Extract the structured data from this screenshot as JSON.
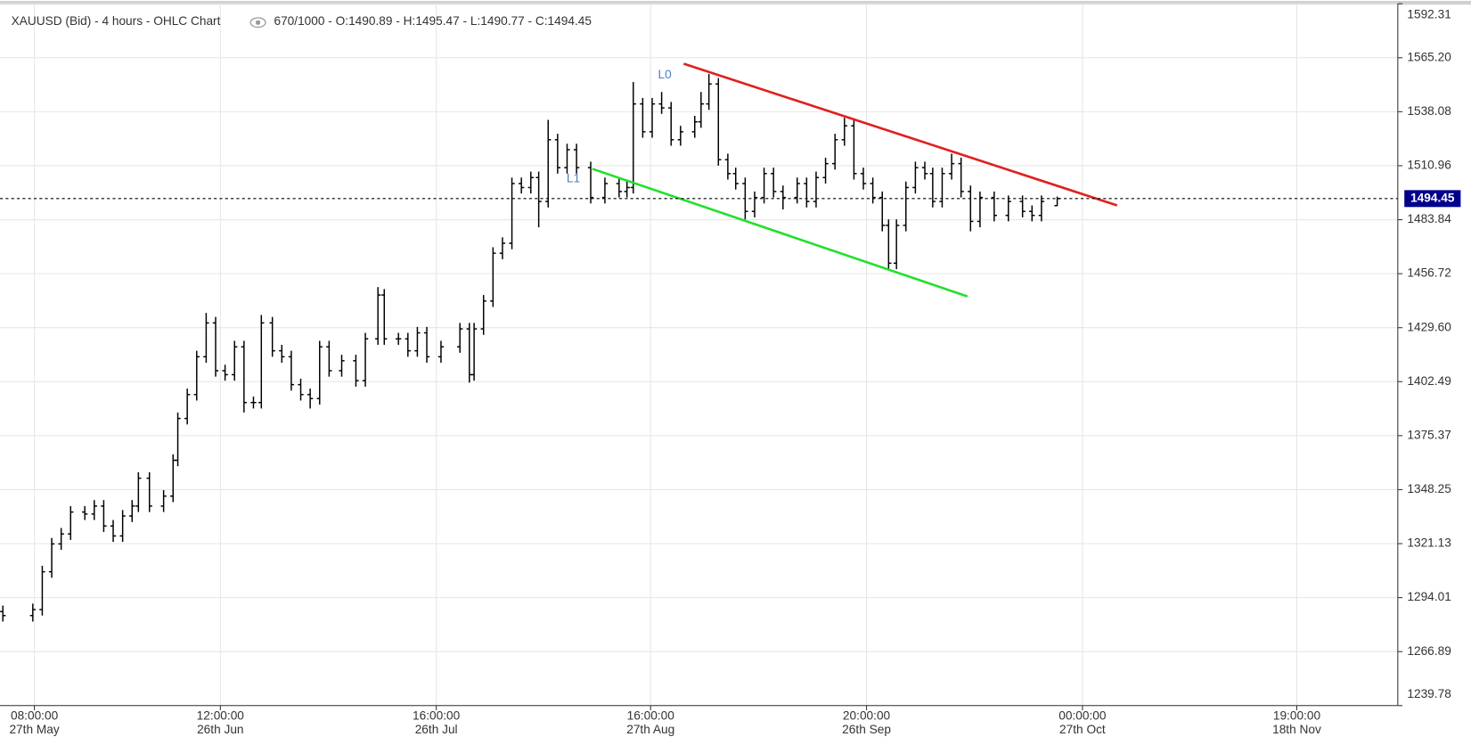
{
  "chart_data": {
    "type": "ohlc",
    "title": "XAUUSD (Bid) - 4 hours - OHLC Chart",
    "counter": "670/1000 - O:1490.89 - H:1495.47 - L:1490.77 - C:1494.45",
    "color": "#000000",
    "x": [
      0,
      19,
      25,
      31,
      37,
      43,
      52,
      58,
      64,
      70,
      76,
      82,
      86,
      93,
      102,
      108,
      111,
      117,
      123,
      129,
      135,
      141,
      147,
      153,
      159,
      164,
      171,
      177,
      183,
      189,
      195,
      201,
      207,
      215,
      224,
      230,
      238,
      242,
      251,
      257,
      263,
      269,
      278,
      290,
      296,
      299,
      305,
      311,
      317,
      323,
      329,
      335,
      340,
      346,
      352,
      358,
      364,
      373,
      382,
      391,
      396,
      400,
      406,
      412,
      418,
      424,
      430,
      439,
      443,
      448,
      454,
      460,
      465,
      471,
      477,
      483,
      489,
      495,
      504,
      510,
      516,
      522,
      528,
      534,
      540,
      546,
      552,
      558,
      562,
      567,
      573,
      579,
      585,
      590,
      596,
      602,
      608,
      614,
      620,
      629,
      638,
      647,
      653,
      659,
      669
    ],
    "open": [
      1287,
      1285,
      1288,
      1307,
      1321,
      1326,
      1337,
      1336,
      1340,
      1330,
      1325,
      1335,
      1340,
      1354,
      1340,
      1345,
      1363,
      1384,
      1396,
      1415,
      1432,
      1408,
      1406,
      1420,
      1392,
      1392,
      1432,
      1418,
      1415,
      1401,
      1396,
      1394,
      1420,
      1408,
      1413,
      1403,
      1424,
      1446,
      1424,
      1424,
      1418,
      1427,
      1415,
      1420,
      1429,
      1406,
      1429,
      1443,
      1467,
      1472,
      1502,
      1500,
      1505,
      1493,
      1524,
      1510,
      1519,
      1510,
      1495,
      1502,
      1498,
      1500,
      1542,
      1528,
      1542,
      1540,
      1524,
      1528,
      1533,
      1542,
      1552,
      1514,
      1507,
      1502,
      1488,
      1495,
      1507,
      1498,
      1495,
      1502,
      1493,
      1505,
      1512,
      1524,
      1531,
      1507,
      1502,
      1495,
      1481,
      1462,
      1481,
      1500,
      1510,
      1507,
      1493,
      1507,
      1512,
      1498,
      1483,
      1495,
      1486,
      1493,
      1488,
      1486,
      1490.89
    ],
    "high": [
      1290,
      1291,
      1310,
      1324,
      1329,
      1340,
      1340,
      1343,
      1343,
      1333,
      1338,
      1343,
      1357,
      1357,
      1348,
      1366,
      1387,
      1399,
      1418,
      1437,
      1435,
      1411,
      1423,
      1423,
      1395,
      1436,
      1435,
      1421,
      1418,
      1404,
      1399,
      1423,
      1423,
      1416,
      1416,
      1427,
      1450,
      1449,
      1427,
      1427,
      1430,
      1430,
      1423,
      1432,
      1432,
      1432,
      1446,
      1470,
      1475,
      1505,
      1505,
      1508,
      1508,
      1534,
      1527,
      1522,
      1522,
      1513,
      1505,
      1505,
      1503,
      1553,
      1545,
      1545,
      1548,
      1543,
      1531,
      1536,
      1548,
      1557,
      1555,
      1517,
      1510,
      1505,
      1498,
      1510,
      1510,
      1501,
      1505,
      1505,
      1508,
      1515,
      1527,
      1535,
      1534,
      1510,
      1505,
      1498,
      1484,
      1484,
      1503,
      1513,
      1513,
      1510,
      1510,
      1517,
      1515,
      1501,
      1498,
      1498,
      1496,
      1496,
      1491,
      1496,
      1495.47
    ],
    "low": [
      1282,
      1282,
      1285,
      1304,
      1318,
      1323,
      1333,
      1333,
      1327,
      1322,
      1322,
      1332,
      1337,
      1337,
      1337,
      1342,
      1360,
      1381,
      1393,
      1412,
      1405,
      1403,
      1403,
      1387,
      1389,
      1389,
      1415,
      1412,
      1398,
      1393,
      1389,
      1391,
      1405,
      1405,
      1400,
      1400,
      1421,
      1421,
      1421,
      1415,
      1415,
      1412,
      1412,
      1417,
      1402,
      1403,
      1426,
      1440,
      1464,
      1469,
      1497,
      1497,
      1480,
      1490,
      1507,
      1507,
      1507,
      1492,
      1492,
      1495,
      1495,
      1497,
      1525,
      1525,
      1537,
      1521,
      1521,
      1525,
      1530,
      1539,
      1511,
      1504,
      1499,
      1484,
      1485,
      1492,
      1495,
      1489,
      1492,
      1490,
      1490,
      1502,
      1509,
      1521,
      1504,
      1499,
      1492,
      1478,
      1459,
      1459,
      1478,
      1497,
      1504,
      1490,
      1490,
      1504,
      1495,
      1478,
      1480,
      1483,
      1483,
      1485,
      1483,
      1483,
      1490.77
    ],
    "close": [
      1285,
      1288,
      1307,
      1321,
      1326,
      1337,
      1336,
      1340,
      1330,
      1325,
      1335,
      1340,
      1354,
      1340,
      1345,
      1363,
      1384,
      1396,
      1415,
      1432,
      1408,
      1406,
      1420,
      1392,
      1392,
      1432,
      1418,
      1415,
      1401,
      1396,
      1394,
      1420,
      1408,
      1413,
      1403,
      1424,
      1446,
      1424,
      1424,
      1418,
      1427,
      1415,
      1420,
      1429,
      1406,
      1429,
      1443,
      1467,
      1472,
      1502,
      1500,
      1505,
      1493,
      1524,
      1510,
      1519,
      1510,
      1495,
      1502,
      1498,
      1500,
      1542,
      1528,
      1542,
      1540,
      1524,
      1528,
      1533,
      1542,
      1552,
      1514,
      1507,
      1502,
      1488,
      1495,
      1507,
      1498,
      1495,
      1502,
      1493,
      1505,
      1512,
      1524,
      1531,
      1507,
      1502,
      1495,
      1481,
      1462,
      1481,
      1500,
      1510,
      1507,
      1493,
      1507,
      1512,
      1498,
      1483,
      1495,
      1486,
      1493,
      1488,
      1486,
      1493,
      1494.45
    ],
    "xlim": [
      -1.8,
      885.1
    ],
    "xticks": [
      {
        "value": 20,
        "label": "08:00:00\n27th May"
      },
      {
        "value": 138,
        "label": "12:00:00\n26th Jun"
      },
      {
        "value": 275,
        "label": "16:00:00\n26th Jul"
      },
      {
        "value": 411,
        "label": "16:00:00\n27th Aug"
      },
      {
        "value": 548,
        "label": "20:00:00\n26th Sep"
      },
      {
        "value": 685,
        "label": "00:00:00\n27th Oct"
      },
      {
        "value": 821,
        "label": "19:00:00\n18th Nov"
      }
    ],
    "ylim": [
      1239.78,
      1592.31
    ],
    "yticks": [
      1239.78,
      {
        "value": 1266.89,
        "label": "1266.89"
      },
      1294.01,
      1321.13,
      1348.25,
      1375.37,
      1402.49,
      {
        "value": 1429.6,
        "label": "1429.60"
      },
      1456.72,
      1483.84,
      1510.96,
      1538.08,
      {
        "value": 1565.2,
        "label": "1565.20"
      },
      1592.31
    ],
    "grid": true,
    "last_price": 1494.45,
    "last_price_color": "#00008b",
    "trendlines": [
      {
        "color": "#e0201e",
        "x": [
          432,
          707
        ],
        "y": [
          1562.2,
          1491.0
        ]
      },
      {
        "color": "#22e02c",
        "x": [
          374,
          612
        ],
        "y": [
          1509.4,
          1445.3
        ]
      }
    ],
    "annotations": [
      {
        "text": "L0",
        "x": 420,
        "y": 1556.5,
        "color": "#4a7fc1"
      },
      {
        "text": "L1",
        "x": 362,
        "y": 1504.2,
        "color": "#4a7fc1"
      }
    ]
  }
}
